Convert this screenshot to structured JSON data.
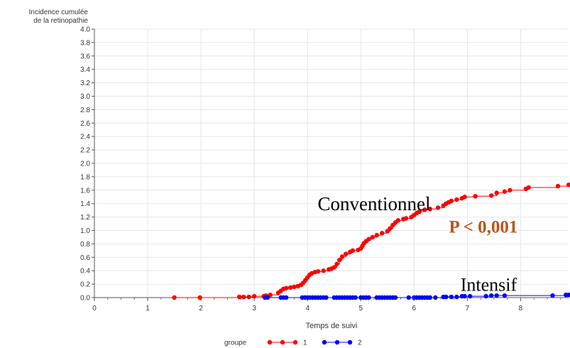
{
  "chart_data": {
    "type": "line",
    "ylabel": [
      "Incidence cumulée",
      "de la retinopathie"
    ],
    "xlabel": "Temps de suivi",
    "xlim": [
      0,
      8.9
    ],
    "ylim": [
      0,
      4.0
    ],
    "x_ticks": [
      0,
      1,
      2,
      3,
      4,
      5,
      6,
      7,
      8
    ],
    "y_ticks": [
      "0.0",
      "0.2",
      "0.4",
      "0.6",
      "0.8",
      "1.0",
      "1.2",
      "1.4",
      "1.6",
      "1.8",
      "2.0",
      "2.2",
      "2.4",
      "2.6",
      "2.8",
      "3.0",
      "3.2",
      "3.4",
      "3.6",
      "3.8",
      "4.0"
    ],
    "grid": true,
    "legend": {
      "title": "groupe",
      "placement": "bottom",
      "entries": [
        "1",
        "2"
      ]
    },
    "series": [
      {
        "name": "1",
        "color": "#ff0000",
        "points": [
          [
            1.5,
            0.0
          ],
          [
            1.98,
            0.0
          ],
          [
            2.72,
            0.01
          ],
          [
            2.8,
            0.01
          ],
          [
            2.9,
            0.01
          ],
          [
            3.0,
            0.02
          ],
          [
            3.18,
            0.02
          ],
          [
            3.22,
            0.03
          ],
          [
            3.3,
            0.04
          ],
          [
            3.45,
            0.07
          ],
          [
            3.5,
            0.1
          ],
          [
            3.55,
            0.13
          ],
          [
            3.6,
            0.14
          ],
          [
            3.68,
            0.15
          ],
          [
            3.75,
            0.16
          ],
          [
            3.82,
            0.17
          ],
          [
            3.88,
            0.19
          ],
          [
            3.92,
            0.22
          ],
          [
            3.96,
            0.26
          ],
          [
            4.0,
            0.3
          ],
          [
            4.04,
            0.34
          ],
          [
            4.08,
            0.36
          ],
          [
            4.14,
            0.38
          ],
          [
            4.2,
            0.39
          ],
          [
            4.3,
            0.4
          ],
          [
            4.4,
            0.42
          ],
          [
            4.45,
            0.43
          ],
          [
            4.5,
            0.45
          ],
          [
            4.55,
            0.5
          ],
          [
            4.6,
            0.56
          ],
          [
            4.65,
            0.61
          ],
          [
            4.72,
            0.65
          ],
          [
            4.8,
            0.68
          ],
          [
            4.85,
            0.7
          ],
          [
            4.95,
            0.71
          ],
          [
            5.0,
            0.73
          ],
          [
            5.03,
            0.77
          ],
          [
            5.06,
            0.81
          ],
          [
            5.1,
            0.84
          ],
          [
            5.15,
            0.87
          ],
          [
            5.22,
            0.9
          ],
          [
            5.3,
            0.93
          ],
          [
            5.4,
            0.96
          ],
          [
            5.5,
            0.99
          ],
          [
            5.55,
            1.03
          ],
          [
            5.6,
            1.08
          ],
          [
            5.65,
            1.12
          ],
          [
            5.7,
            1.15
          ],
          [
            5.8,
            1.17
          ],
          [
            5.85,
            1.18
          ],
          [
            5.95,
            1.2
          ],
          [
            6.0,
            1.23
          ],
          [
            6.05,
            1.26
          ],
          [
            6.1,
            1.28
          ],
          [
            6.2,
            1.31
          ],
          [
            6.3,
            1.32
          ],
          [
            6.45,
            1.34
          ],
          [
            6.55,
            1.37
          ],
          [
            6.6,
            1.4
          ],
          [
            6.65,
            1.42
          ],
          [
            6.7,
            1.44
          ],
          [
            6.8,
            1.46
          ],
          [
            6.9,
            1.48
          ],
          [
            6.95,
            1.5
          ],
          [
            7.15,
            1.51
          ],
          [
            7.45,
            1.52
          ],
          [
            7.55,
            1.56
          ],
          [
            7.7,
            1.58
          ],
          [
            7.8,
            1.6
          ],
          [
            8.1,
            1.62
          ],
          [
            8.15,
            1.64
          ],
          [
            8.7,
            1.66
          ],
          [
            8.9,
            1.68
          ]
        ]
      },
      {
        "name": "2",
        "color": "#0000ff",
        "points": [
          [
            3.2,
            0.0
          ],
          [
            3.25,
            0.0
          ],
          [
            3.5,
            0.0
          ],
          [
            3.55,
            0.0
          ],
          [
            3.6,
            0.0
          ],
          [
            3.9,
            0.0
          ],
          [
            3.95,
            0.0
          ],
          [
            4.0,
            0.0
          ],
          [
            4.05,
            0.0
          ],
          [
            4.1,
            0.0
          ],
          [
            4.15,
            0.0
          ],
          [
            4.2,
            0.0
          ],
          [
            4.25,
            0.0
          ],
          [
            4.3,
            0.0
          ],
          [
            4.35,
            0.0
          ],
          [
            4.5,
            0.0
          ],
          [
            4.55,
            0.0
          ],
          [
            4.6,
            0.0
          ],
          [
            4.65,
            0.0
          ],
          [
            4.7,
            0.0
          ],
          [
            4.75,
            0.0
          ],
          [
            4.8,
            0.0
          ],
          [
            4.85,
            0.0
          ],
          [
            4.9,
            0.0
          ],
          [
            5.0,
            0.0
          ],
          [
            5.05,
            0.0
          ],
          [
            5.1,
            0.0
          ],
          [
            5.15,
            0.0
          ],
          [
            5.3,
            0.0
          ],
          [
            5.35,
            0.0
          ],
          [
            5.4,
            0.0
          ],
          [
            5.45,
            0.0
          ],
          [
            5.5,
            0.0
          ],
          [
            5.55,
            0.0
          ],
          [
            5.6,
            0.0
          ],
          [
            5.65,
            0.0
          ],
          [
            5.9,
            0.0
          ],
          [
            6.0,
            0.0
          ],
          [
            6.05,
            0.0
          ],
          [
            6.1,
            0.0
          ],
          [
            6.15,
            0.0
          ],
          [
            6.2,
            0.0
          ],
          [
            6.25,
            0.0
          ],
          [
            6.3,
            0.0
          ],
          [
            6.4,
            0.0
          ],
          [
            6.55,
            0.01
          ],
          [
            6.6,
            0.01
          ],
          [
            6.7,
            0.01
          ],
          [
            6.8,
            0.01
          ],
          [
            6.9,
            0.02
          ],
          [
            6.95,
            0.02
          ],
          [
            7.05,
            0.02
          ],
          [
            7.35,
            0.02
          ],
          [
            7.45,
            0.03
          ],
          [
            7.55,
            0.03
          ],
          [
            7.7,
            0.03
          ],
          [
            8.6,
            0.03
          ],
          [
            8.85,
            0.04
          ],
          [
            8.9,
            0.04
          ]
        ]
      }
    ],
    "annotations": [
      {
        "text": "Conventionnel",
        "x": 5.25,
        "y": 1.3,
        "color": "#000000"
      },
      {
        "text": "P < 0,001",
        "x": 7.3,
        "y": 0.97,
        "color": "#b8561c"
      },
      {
        "text": "Intensif",
        "x": 7.4,
        "y": 0.1,
        "color": "#000000"
      }
    ]
  }
}
